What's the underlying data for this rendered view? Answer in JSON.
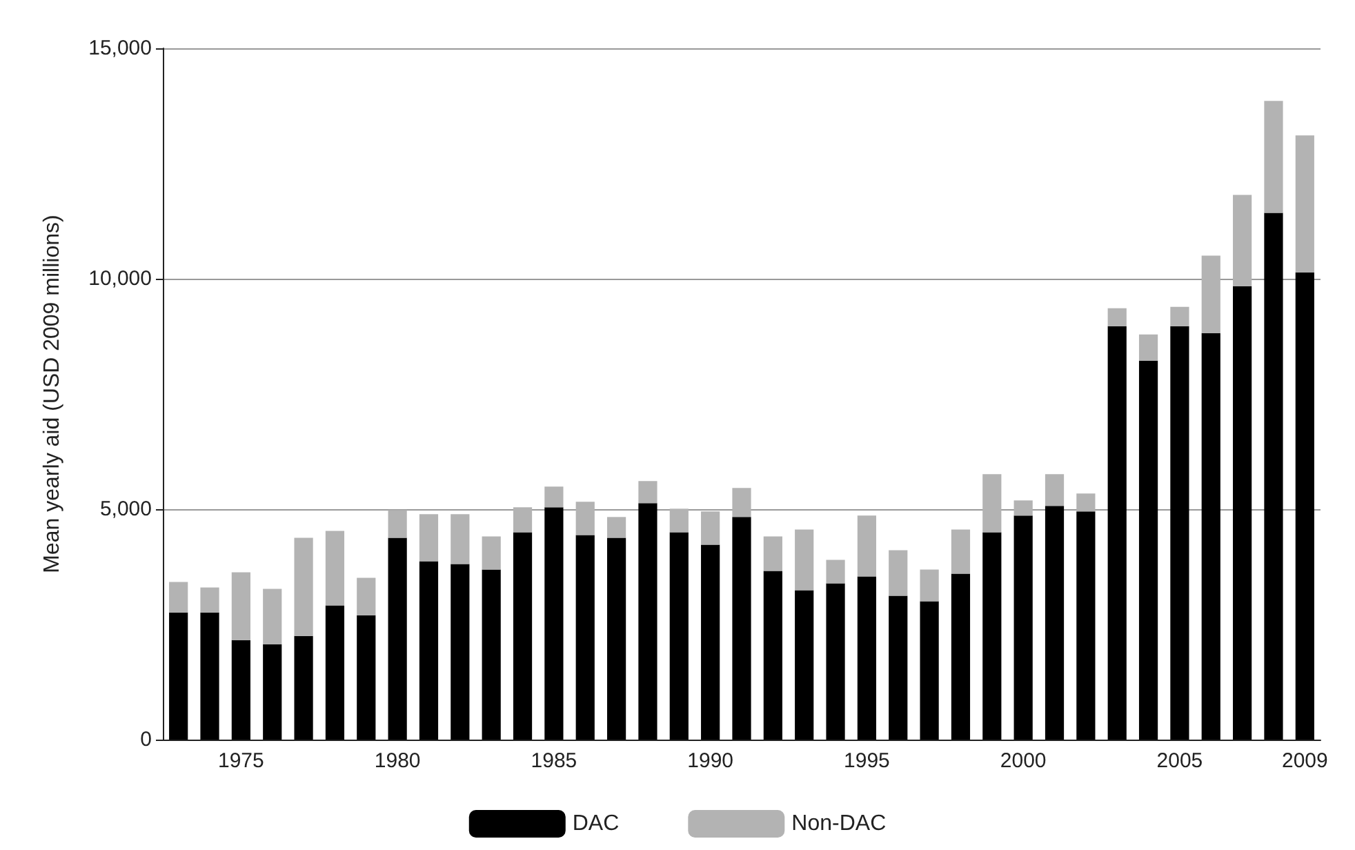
{
  "chart_data": {
    "type": "bar",
    "stacked": true,
    "ylabel": "Mean yearly aid (USD 2009 millions)",
    "categories": [
      null,
      null,
      "1975",
      null,
      null,
      null,
      null,
      "1980",
      null,
      null,
      null,
      null,
      "1985",
      null,
      null,
      null,
      null,
      "1990",
      null,
      null,
      null,
      null,
      "1995",
      null,
      null,
      null,
      null,
      "2000",
      null,
      null,
      null,
      null,
      "2005",
      null,
      null,
      null,
      "2009"
    ],
    "series": [
      {
        "name": "DAC",
        "color": "#000000",
        "values": [
          2760,
          2760,
          2160,
          2070,
          2250,
          2910,
          2700,
          4380,
          3870,
          3810,
          3690,
          4500,
          5040,
          4440,
          4380,
          5130,
          4500,
          4230,
          4830,
          3660,
          3240,
          3390,
          3540,
          3120,
          3000,
          3600,
          4500,
          4860,
          5070,
          4950,
          8970,
          8220,
          8970,
          8820,
          9840,
          11430,
          10140
        ]
      },
      {
        "name": "Non-DAC",
        "color": "#b3b3b3",
        "values": [
          660,
          540,
          1470,
          1200,
          2130,
          1620,
          810,
          600,
          1020,
          1080,
          720,
          540,
          450,
          720,
          450,
          480,
          510,
          720,
          630,
          750,
          1320,
          510,
          1320,
          990,
          690,
          960,
          1260,
          330,
          690,
          390,
          390,
          570,
          420,
          1680,
          1980,
          2430,
          2970
        ]
      }
    ],
    "ylim": [
      0,
      15000
    ],
    "yticks": [
      {
        "value": 0,
        "label": "0"
      },
      {
        "value": 5000,
        "label": "5,000"
      },
      {
        "value": 10000,
        "label": "10,000"
      },
      {
        "value": 15000,
        "label": "15,000"
      }
    ],
    "grid": "y",
    "legend": "bottom"
  }
}
